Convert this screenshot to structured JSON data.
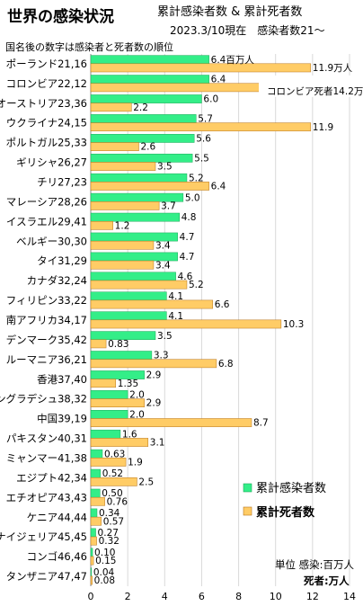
{
  "chart_data": {
    "type": "bar",
    "orientation": "horizontal",
    "title": "世界の感染状況",
    "subtitle": "累計感染者数 & 累計死者数",
    "date_text": "2023.3/10現在　感染者数21〜",
    "note": "国名後の数字は感染者と死者数の順位",
    "categories": [
      "ポーランド21,16",
      "コロンビア22,12",
      "オーストリア23,36",
      "ウクライナ24,15",
      "ポルトガル25,33",
      "ギリシャ26,27",
      "チリ27,23",
      "マレーシア28,26",
      "イスラエル29,41",
      "ベルギー30,30",
      "タイ31,29",
      "カナダ32,24",
      "フィリピン33,22",
      "南アフリカ34,17",
      "デンマーク35,42",
      "ルーマニア36,21",
      "香港37,40",
      "バングラデシュ38,32",
      "中国39,19",
      "パキスタン40,31",
      "ミャンマー41,38",
      "エジプト42,34",
      "エチオピア43,43",
      "ケニア44,44",
      "ナイジェリア45,45",
      "コンゴ46,46",
      "タンザニア47,47"
    ],
    "series": [
      {
        "name": "累計感染者数",
        "color": "#33ee88",
        "values": [
          6.4,
          6.4,
          6.0,
          5.7,
          5.6,
          5.5,
          5.2,
          5.0,
          4.8,
          4.7,
          4.7,
          4.6,
          4.1,
          4.1,
          3.5,
          3.3,
          2.9,
          2.0,
          2.0,
          1.6,
          0.63,
          0.52,
          0.5,
          0.34,
          0.27,
          0.1,
          0.04
        ],
        "labels": [
          "6.4",
          "6.4",
          "6.0",
          "5.7",
          "5.6",
          "5.5",
          "5.2",
          "5.0",
          "4.8",
          "4.7",
          "4.7",
          "4.6",
          "4.1",
          "4.1",
          "3.5",
          "3.3",
          "2.9",
          "2.0",
          "2.0",
          "1.6",
          "0.63",
          "0.52",
          "0.50",
          "0.34",
          "0.27",
          "0.10",
          "0.04"
        ]
      },
      {
        "name": "累計死者数",
        "color": "#ffcc66",
        "values": [
          11.9,
          14.2,
          2.2,
          11.9,
          2.6,
          3.5,
          6.4,
          3.7,
          1.2,
          3.4,
          3.4,
          5.2,
          6.6,
          10.3,
          0.83,
          6.8,
          1.35,
          2.9,
          8.7,
          3.1,
          1.9,
          2.5,
          0.76,
          0.57,
          0.32,
          0.15,
          0.08
        ],
        "labels": [
          "11.9",
          "14.2",
          "2.2",
          "11.9",
          "2.6",
          "3.5",
          "6.4",
          "3.7",
          "1.2",
          "3.4",
          "3.4",
          "5.2",
          "6.6",
          "10.3",
          "0.83",
          "6.8",
          "1.35",
          "2.9",
          "8.7",
          "3.1",
          "1.9",
          "2.5",
          "0.76",
          "0.57",
          "0.32",
          "0.15",
          "0.08"
        ]
      }
    ],
    "first_value_suffixes": [
      "百万人",
      "万人"
    ],
    "annotation": "コロンビア死者14.2万人",
    "xlim": [
      0,
      14
    ],
    "x_ticks": [
      0,
      2,
      4,
      6,
      8,
      10,
      12,
      14
    ],
    "grid": "vertical",
    "legend_position": "right",
    "unit_line1": "単位 感染:百万人",
    "unit_line2": "死者:万人"
  }
}
